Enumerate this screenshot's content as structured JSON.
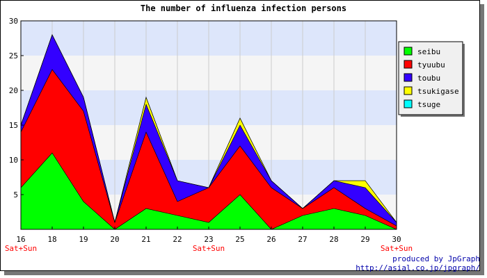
{
  "chart_data": {
    "type": "area",
    "stacked": true,
    "title": "The number of influenza infection persons",
    "categories": [
      "16",
      "18",
      "19",
      "20",
      "21",
      "22",
      "23",
      "25",
      "26",
      "27",
      "28",
      "29",
      "30"
    ],
    "weekend_labels": [
      "Sat+Sun",
      "",
      "",
      "",
      "",
      "",
      "Sat+Sun",
      "",
      "",
      "",
      "",
      "",
      "Sat+Sun"
    ],
    "ylim": [
      0,
      30
    ],
    "yticks": [
      5,
      10,
      15,
      20,
      25,
      30
    ],
    "grid": true,
    "band_colors": [
      "#f5f5f5",
      "#dde6fb"
    ],
    "legend_position": "right",
    "series": [
      {
        "name": "seibu",
        "color": "#00ff00",
        "values": [
          6,
          11,
          4,
          0,
          3,
          2,
          1,
          5,
          0,
          2,
          3,
          2,
          0
        ]
      },
      {
        "name": "tyuubu",
        "color": "#ff0000",
        "values": [
          8,
          12,
          13,
          1,
          11,
          2,
          5,
          7,
          6,
          1,
          3,
          1,
          0.5
        ]
      },
      {
        "name": "toubu",
        "color": "#3300ff",
        "values": [
          1,
          5,
          2,
          0,
          4,
          3,
          0,
          3,
          1,
          0,
          1,
          3,
          0.5
        ]
      },
      {
        "name": "tsukigase",
        "color": "#ffff00",
        "values": [
          0,
          0,
          0,
          0,
          1,
          0,
          0,
          1,
          0,
          0,
          0,
          1,
          0
        ]
      },
      {
        "name": "tsuge",
        "color": "#00ffff",
        "values": [
          0,
          0,
          0,
          0,
          0,
          0,
          0,
          0,
          0,
          0,
          0,
          0,
          0
        ]
      }
    ]
  },
  "footer": {
    "produced_by": "produced by JpGraph",
    "url": "http://asial.co.jp/jpgraph/"
  }
}
